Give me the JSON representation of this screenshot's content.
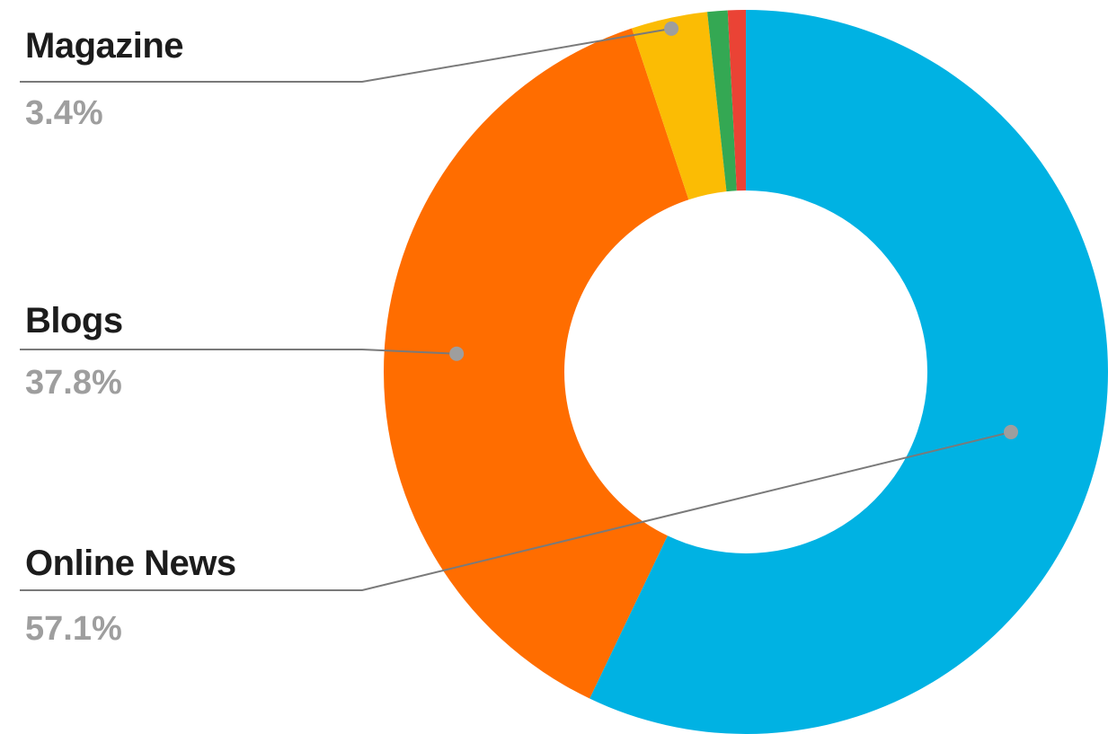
{
  "chart_data": {
    "type": "pie",
    "donut": true,
    "title": "",
    "slices": [
      {
        "label": "Online News",
        "value": 57.1,
        "display": "57.1%",
        "color": "#00b2e3",
        "labeled": true
      },
      {
        "label": "Blogs",
        "value": 37.8,
        "display": "37.8%",
        "color": "#ff6d00",
        "labeled": true
      },
      {
        "label": "Magazine",
        "value": 3.4,
        "display": "3.4%",
        "color": "#fbbc04",
        "labeled": true
      },
      {
        "label": "",
        "value": 0.9,
        "display": "",
        "color": "#34a853",
        "labeled": false
      },
      {
        "label": "",
        "value": 0.8,
        "display": "",
        "color": "#ea4335",
        "labeled": false
      }
    ],
    "legend": "none",
    "grid": false
  }
}
